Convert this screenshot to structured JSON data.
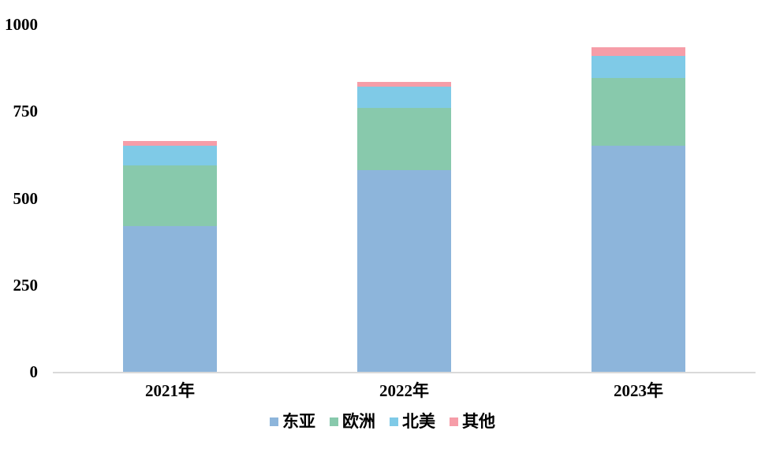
{
  "chart_data": {
    "type": "bar",
    "stacked": true,
    "title": "",
    "categories": [
      "2021年",
      "2022年",
      "2023年"
    ],
    "series": [
      {
        "name": "东亚",
        "color": "#8DB5DB",
        "values": [
          420,
          580,
          650
        ]
      },
      {
        "name": "欧洲",
        "color": "#88C9AC",
        "values": [
          175,
          180,
          195
        ]
      },
      {
        "name": "北美",
        "color": "#7FCAE7",
        "values": [
          55,
          60,
          65
        ]
      },
      {
        "name": "其他",
        "color": "#F69DA8",
        "values": [
          15,
          15,
          25
        ]
      }
    ],
    "totals": [
      665,
      835,
      935
    ],
    "ylim": [
      0,
      1000
    ],
    "yticks": [
      0,
      250,
      500,
      750,
      1000
    ],
    "xlabel": "",
    "ylabel": "",
    "grid": false,
    "legend_position": "bottom",
    "axis_line_color": "#D9D9D9",
    "text_color": "#000000",
    "background_color": "#FFFFFF"
  }
}
